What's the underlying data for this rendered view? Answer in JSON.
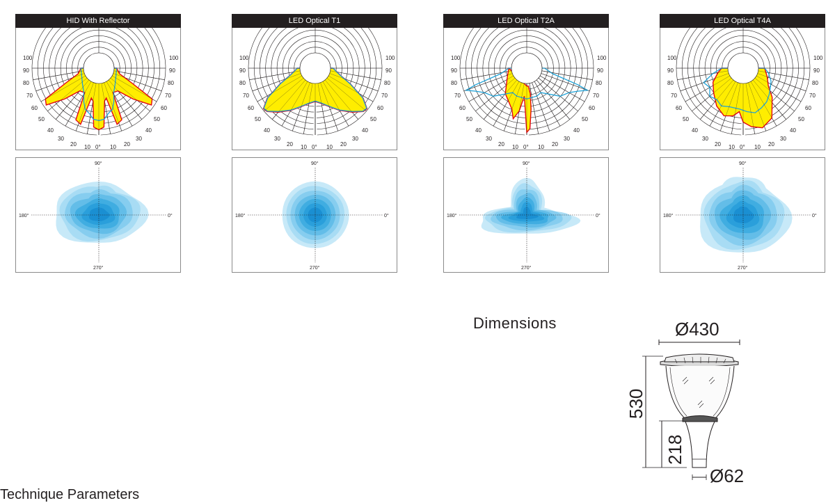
{
  "panels": [
    {
      "title": "HID With Reflector",
      "type": "hid"
    },
    {
      "title": "LED Optical T1",
      "type": "t1"
    },
    {
      "title": "LED Optical T2A",
      "type": "t2a"
    },
    {
      "title": "LED Optical T4A",
      "type": "t4a"
    }
  ],
  "polar_labels": {
    "side": [
      "100",
      "90",
      "80",
      "70",
      "60",
      "50",
      "40",
      "30",
      "20",
      "10"
    ],
    "zero": "0°"
  },
  "iso_labels": {
    "top": "90°",
    "left": "180°",
    "right": "0°",
    "bottom": "270°"
  },
  "dimensions": {
    "title": "Dimensions",
    "width": "Ø430",
    "height": "530",
    "neck_height": "218",
    "base": "Ø62"
  },
  "footer": "Technique Parameters",
  "colors": {
    "header_bg": "#231f20",
    "fill": "#ffed00",
    "red": "#e30613",
    "blue": "#1fa3d9",
    "iso": "#29abe2"
  }
}
